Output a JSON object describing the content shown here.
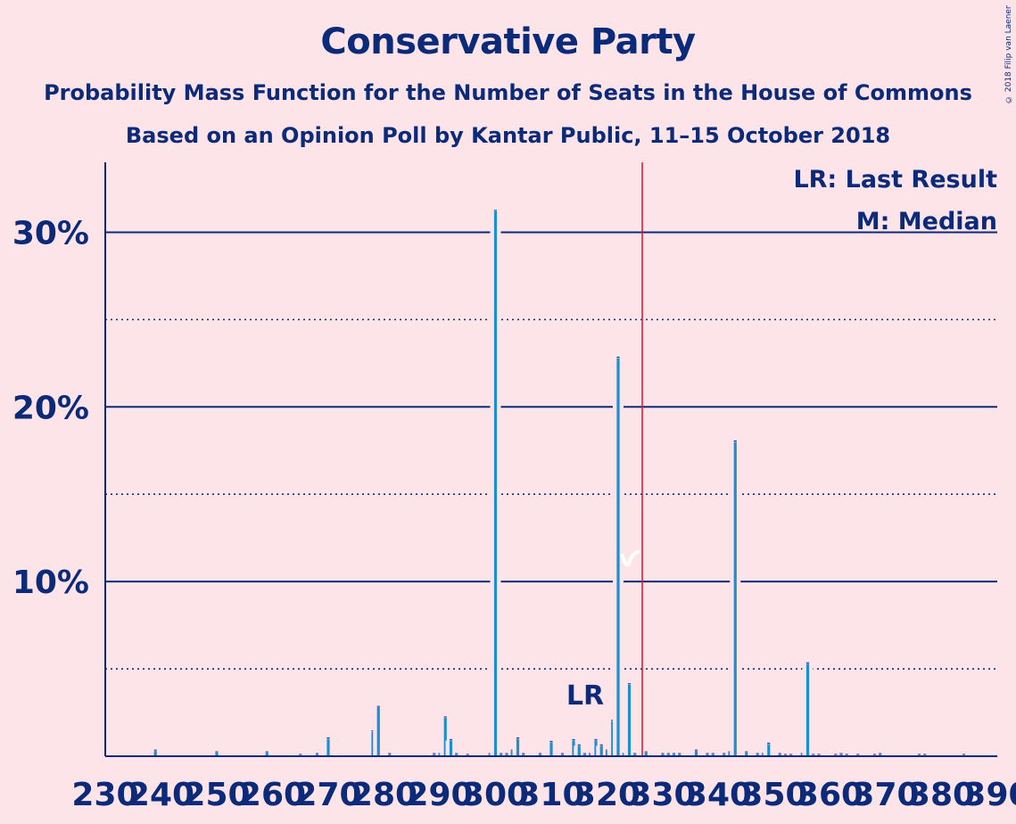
{
  "title": "Conservative Party",
  "subtitle": "Probability Mass Function for the Number of Seats in the House of Commons",
  "subtitle2": "Based on an Opinion Poll by Kantar Public, 11–15 October 2018",
  "copyright": "© 2018 Filip van Laenen",
  "legend": {
    "last_result": "LR: Last Result",
    "median": "M: Median"
  },
  "colors": {
    "background": "#fde4e8",
    "bar": "#1a8fd1",
    "axis": "#0b2a7a",
    "majority_line": "#e0102b"
  },
  "chart_data": {
    "type": "bar",
    "title": "Conservative Party",
    "xlabel": "",
    "ylabel": "",
    "xlim": [
      230,
      390
    ],
    "ylim": [
      0,
      34
    ],
    "y_ticks": [
      10,
      20,
      30
    ],
    "y_tick_labels": [
      "10%",
      "20%",
      "30%"
    ],
    "y_dotted_gridlines": [
      5,
      15,
      25
    ],
    "x_tick_labels": [
      "230",
      "240",
      "250",
      "260",
      "270",
      "280",
      "290",
      "300",
      "310",
      "320",
      "330",
      "340",
      "350",
      "360",
      "370",
      "380",
      "390"
    ],
    "majority_seat": 326,
    "last_result_seat": 318,
    "last_result_label": "LR",
    "median_seat": 324,
    "median_label": "M",
    "x": [
      239,
      250,
      259,
      265,
      268,
      270,
      278,
      279,
      281,
      289,
      290,
      291,
      292,
      293,
      295,
      299,
      300,
      301,
      302,
      303,
      304,
      305,
      308,
      310,
      312,
      314,
      315,
      316,
      317,
      318,
      319,
      320,
      321,
      322,
      323,
      324,
      325,
      327,
      330,
      331,
      332,
      333,
      336,
      338,
      339,
      341,
      342,
      343,
      345,
      347,
      348,
      349,
      351,
      352,
      353,
      355,
      356,
      357,
      358,
      361,
      362,
      363,
      365,
      368,
      369,
      376,
      377,
      384
    ],
    "values": [
      0.3,
      0.2,
      0.2,
      0.05,
      0.1,
      1.0,
      1.4,
      2.8,
      0.1,
      0.1,
      0.1,
      2.2,
      0.9,
      0.1,
      0.05,
      0.1,
      31.2,
      0.1,
      0.1,
      0.3,
      1.0,
      0.1,
      0.1,
      0.8,
      0.1,
      0.9,
      0.6,
      0.1,
      0.1,
      0.9,
      0.6,
      0.3,
      2.0,
      22.8,
      0.1,
      4.1,
      0.1,
      0.2,
      0.1,
      0.1,
      0.1,
      0.1,
      0.3,
      0.1,
      0.1,
      0.1,
      0.2,
      18.0,
      0.2,
      0.1,
      0.1,
      0.7,
      0.1,
      0.05,
      0.05,
      0.1,
      5.3,
      0.05,
      0.05,
      0.05,
      0.1,
      0.05,
      0.05,
      0.05,
      0.1,
      0.05,
      0.05,
      0.05
    ]
  }
}
